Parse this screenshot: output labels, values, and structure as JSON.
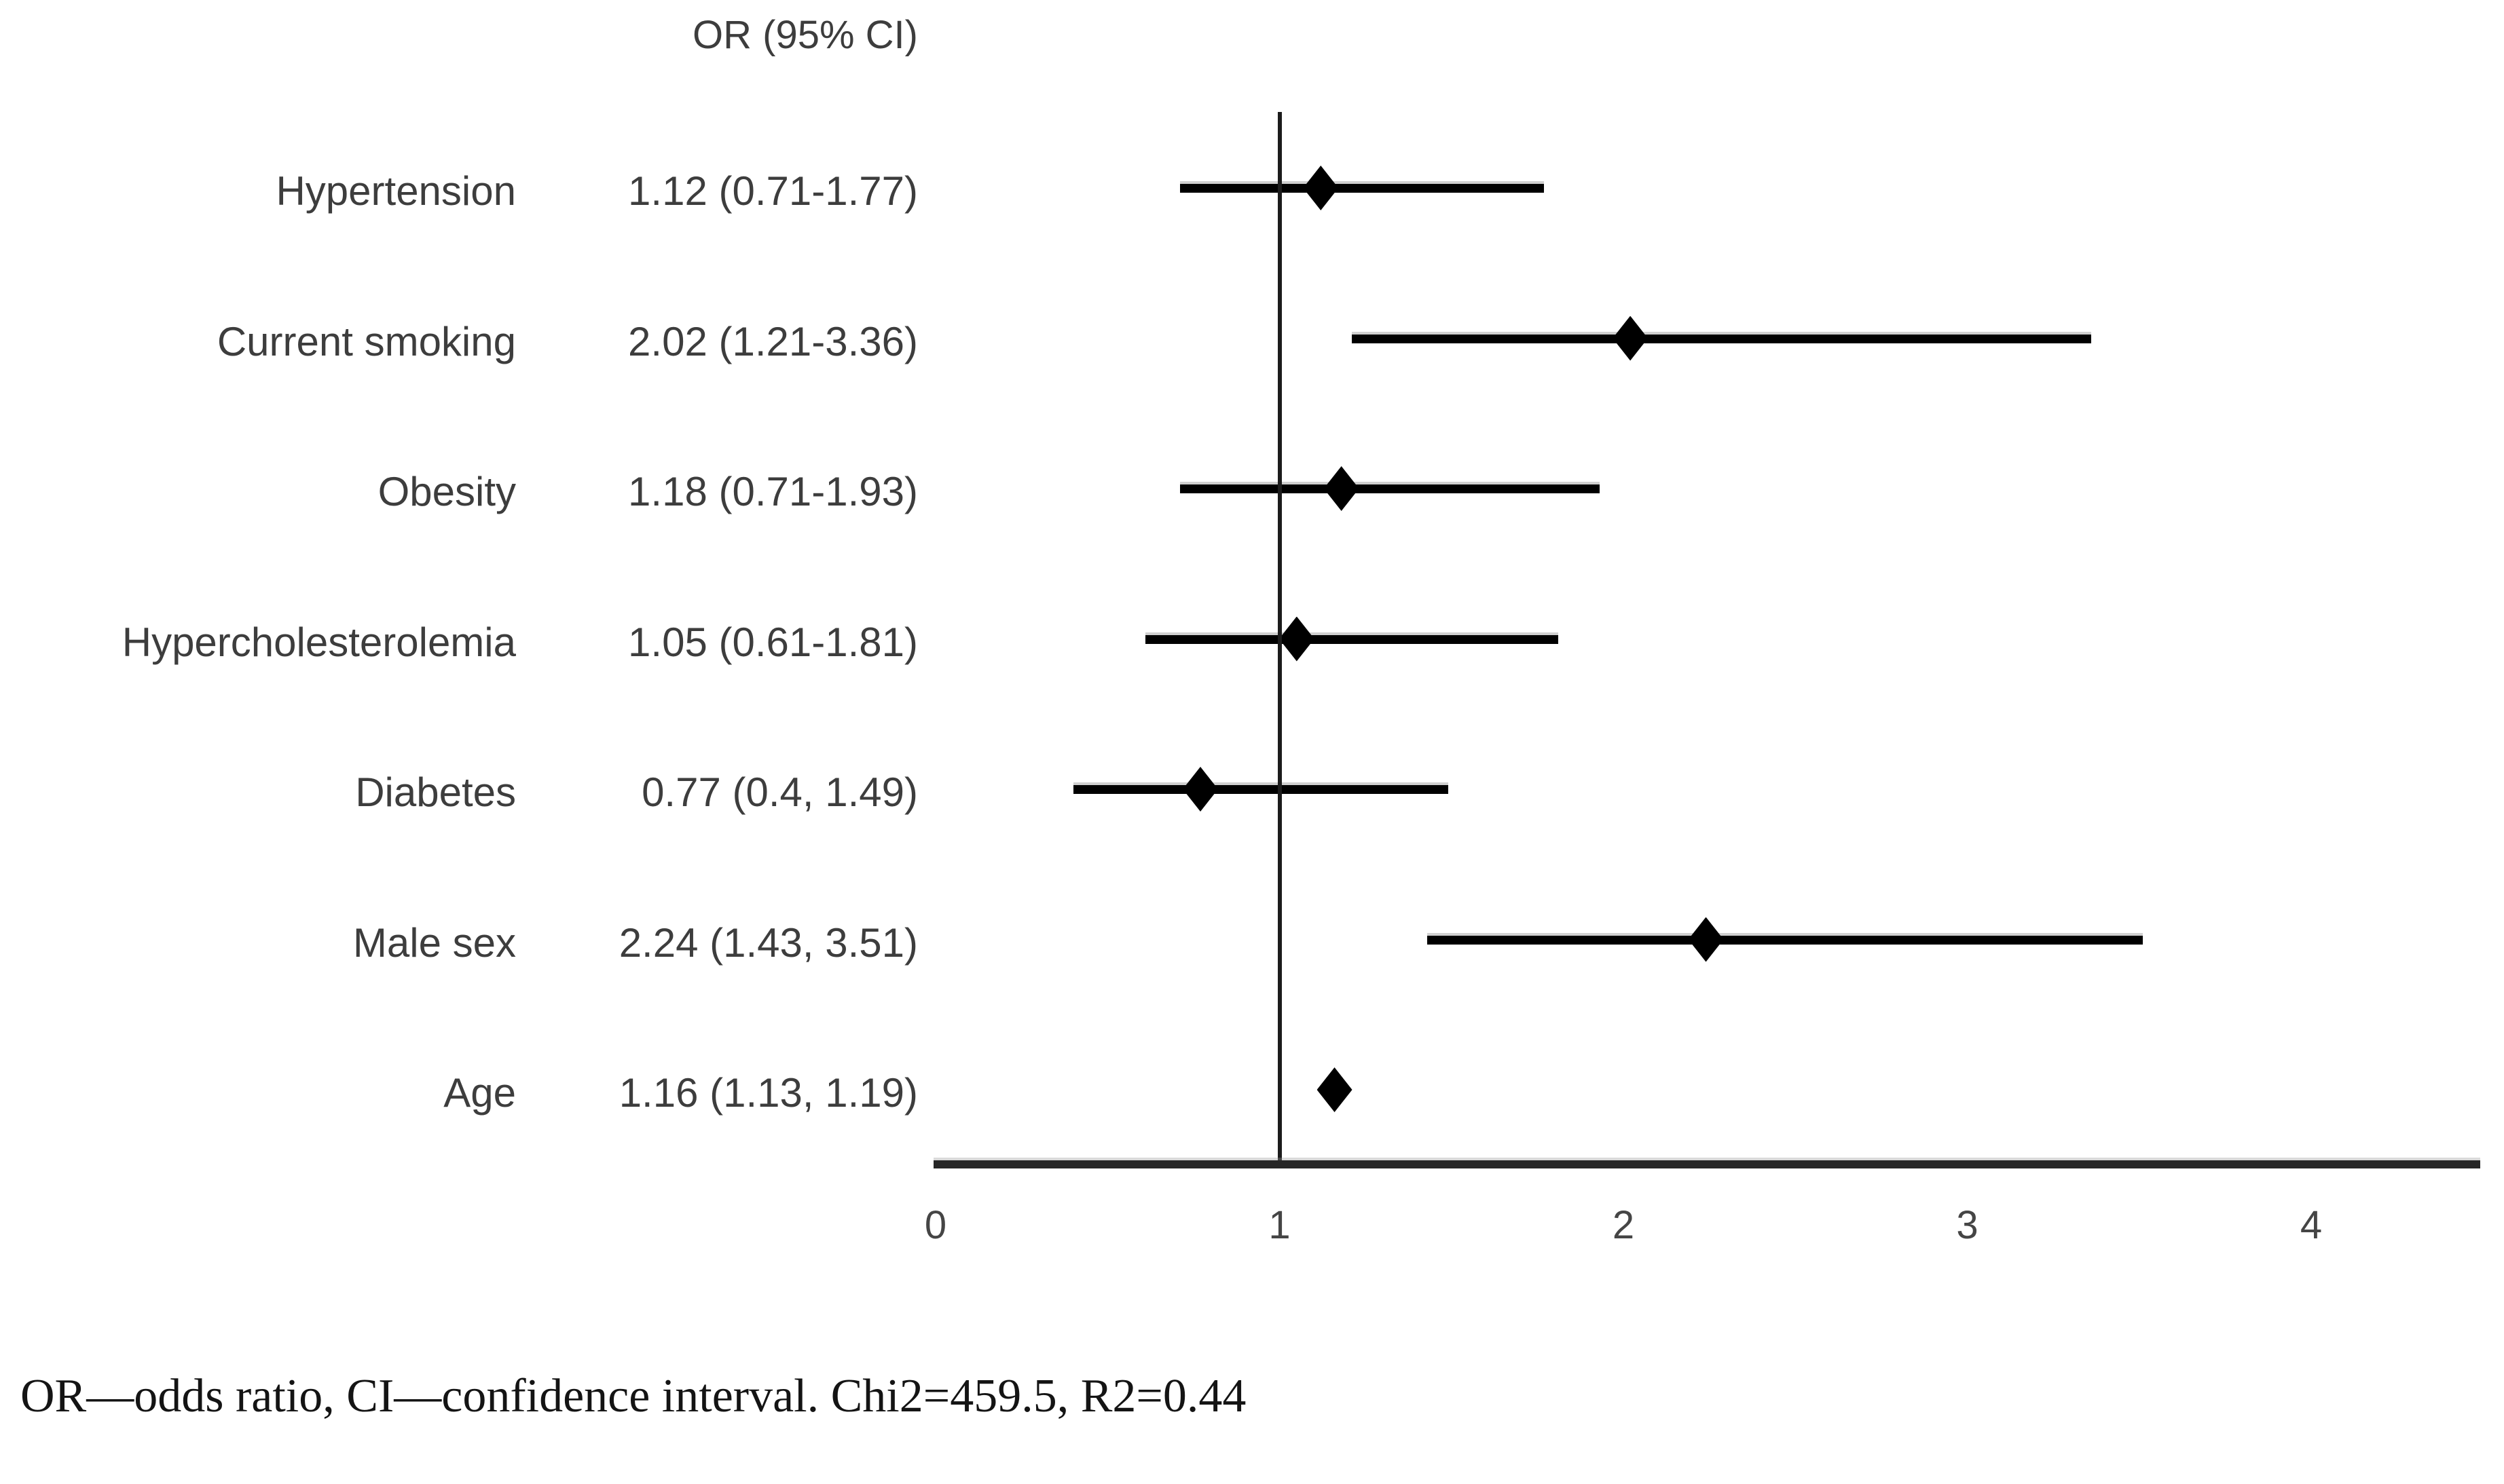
{
  "chart_data": {
    "type": "forest",
    "column_header": "OR (95% CI)",
    "xlabel": "",
    "ylabel": "",
    "xlim": [
      0,
      4.5
    ],
    "x_ticks": [
      "0",
      "1",
      "2",
      "3",
      "4"
    ],
    "x_tick_values": [
      0,
      1,
      2,
      3,
      4
    ],
    "reference_line_x": 1,
    "grid": false,
    "legend": false,
    "rows": [
      {
        "label": "Hypertension",
        "value_text": "1.12 (0.71-1.77)",
        "or": 1.12,
        "ci_low": 0.71,
        "ci_high": 1.77
      },
      {
        "label": "Current smoking",
        "value_text": "2.02 (1.21-3.36)",
        "or": 2.02,
        "ci_low": 1.21,
        "ci_high": 3.36
      },
      {
        "label": "Obesity",
        "value_text": "1.18 (0.71-1.93)",
        "or": 1.18,
        "ci_low": 0.71,
        "ci_high": 1.93
      },
      {
        "label": "Hypercholesterolemia",
        "value_text": "1.05 (0.61-1.81)",
        "or": 1.05,
        "ci_low": 0.61,
        "ci_high": 1.81
      },
      {
        "label": "Diabetes",
        "value_text": "0.77 (0.4, 1.49)",
        "or": 0.77,
        "ci_low": 0.4,
        "ci_high": 1.49
      },
      {
        "label": "Male sex",
        "value_text": "2.24 (1.43, 3.51)",
        "or": 2.24,
        "ci_low": 1.43,
        "ci_high": 3.51
      },
      {
        "label": "Age",
        "value_text": "1.16 (1.13, 1.19)",
        "or": 1.16,
        "ci_low": 1.13,
        "ci_high": 1.19
      }
    ]
  },
  "footnote": "OR—odds ratio, CI—confidence interval. Chi2=459.5, R2=0.44",
  "colors": {
    "marker": "#000000",
    "ci_line": "#000000",
    "axis_line": "#262626",
    "reference_line": "#1c1c1c",
    "label_text": "#3d3d3d",
    "tick_text": "#454545",
    "footnote_text": "#141414",
    "background": "#ffffff"
  }
}
